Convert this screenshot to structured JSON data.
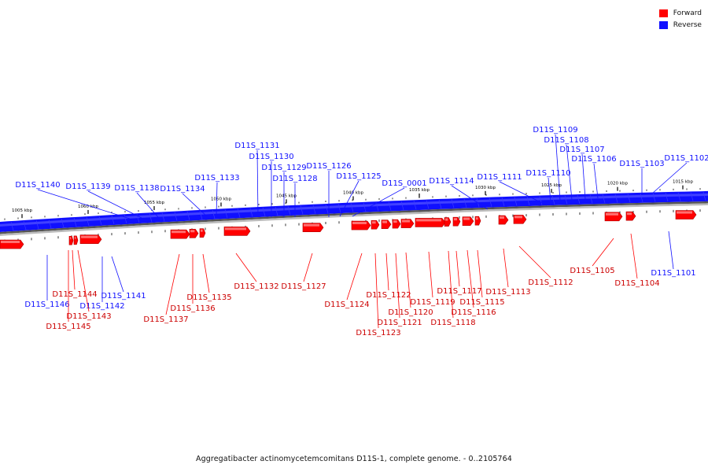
{
  "legend": {
    "forward_label": "Forward",
    "reverse_label": "Reverse",
    "forward_color": "#ff0000",
    "reverse_color": "#1010ff"
  },
  "caption": "Aggregatibacter actinomycetemcomitans D11S-1, complete genome. - 0..2105764",
  "scale_labels": [
    "1005 kbp",
    "1010 kbp",
    "1015 kbp",
    "1020 kbp",
    "1025 kbp",
    "1030 kbp",
    "1035 kbp",
    "1040 kbp",
    "1045 kbp",
    "1050 kbp",
    "1055 kbp",
    "1060 kbp",
    "1065 kbp"
  ],
  "reverse_genes": [
    "D11S_1140",
    "D11S_1139",
    "D11S_1138",
    "D11S_1134",
    "D11S_1133",
    "D11S_1131",
    "D11S_1130",
    "D11S_1129",
    "D11S_1128",
    "D11S_1126",
    "D11S_1125",
    "D11S_0001",
    "D11S_1114",
    "D11S_1111",
    "D11S_1110",
    "D11S_1109",
    "D11S_1108",
    "D11S_1107",
    "D11S_1106",
    "D11S_1103",
    "D11S_1102",
    "D11S_1146",
    "D11S_1141",
    "D11S_1142",
    "D11S_1101"
  ],
  "forward_genes": [
    "D11S_1144",
    "D11S_1143",
    "D11S_1145",
    "D11S_1137",
    "D11S_1136",
    "D11S_1135",
    "D11S_1132",
    "D11S_1127",
    "D11S_1124",
    "D11S_1122",
    "D11S_1123",
    "D11S_1121",
    "D11S_1120",
    "D11S_1119",
    "D11S_1118",
    "D11S_1117",
    "D11S_1116",
    "D11S_1115",
    "D11S_1113",
    "D11S_1112",
    "D11S_1105",
    "D11S_1104"
  ]
}
